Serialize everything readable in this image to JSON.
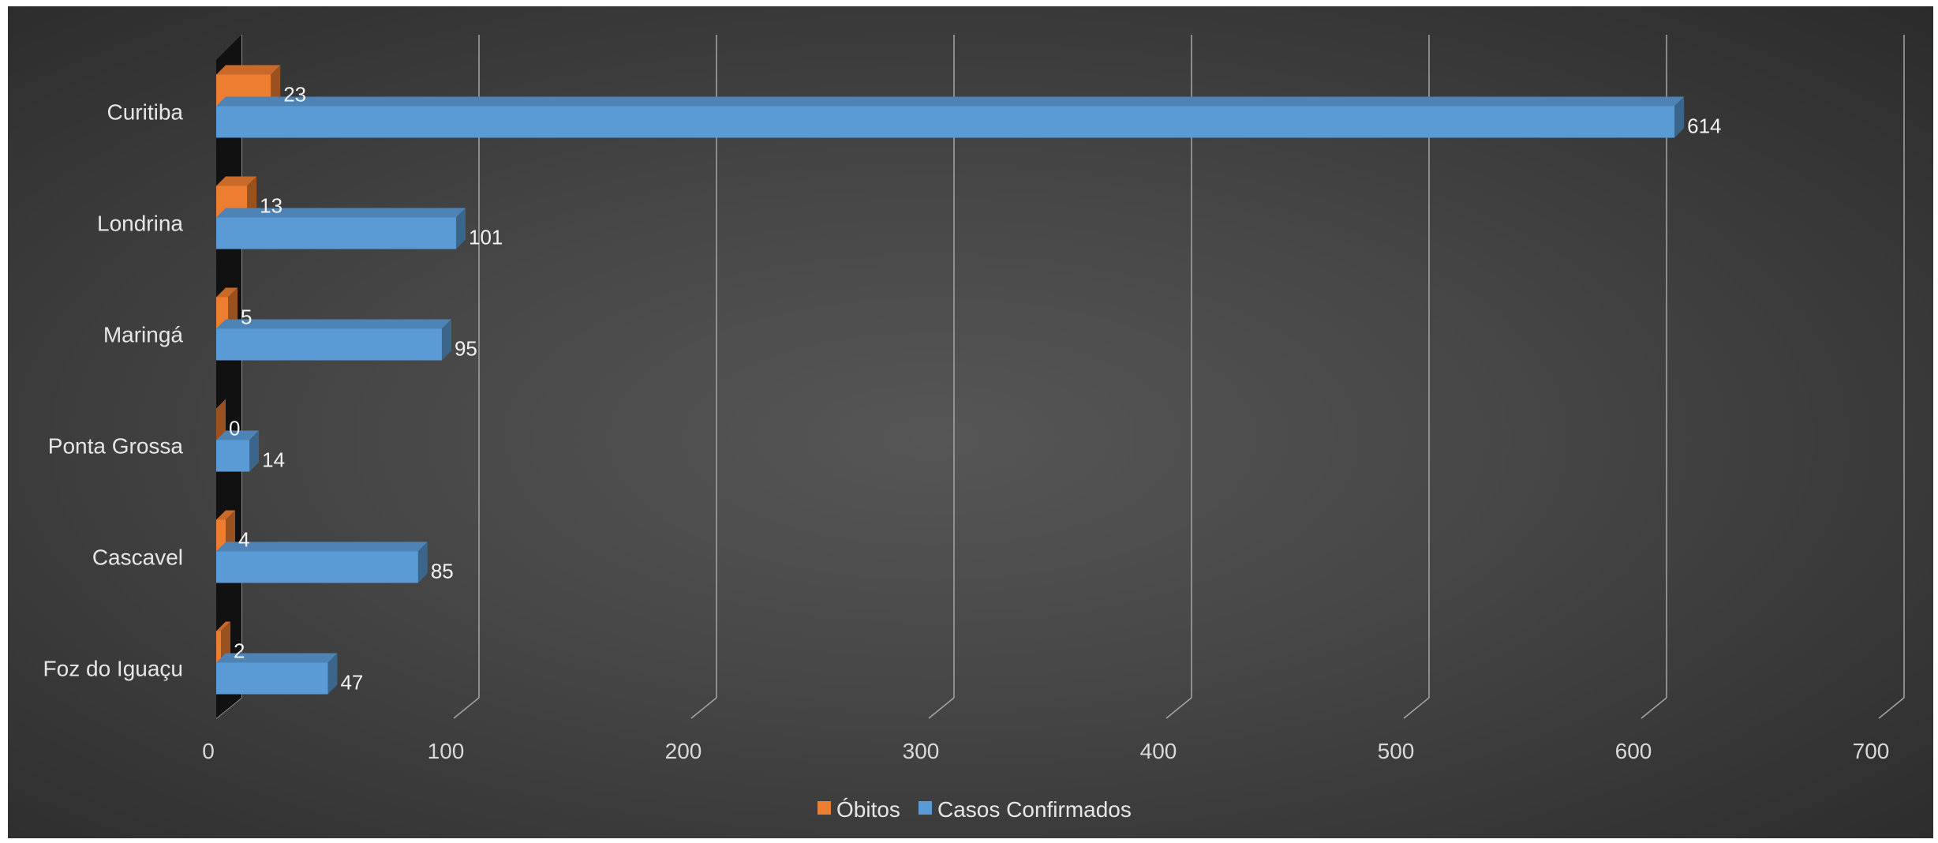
{
  "chart_data": {
    "type": "bar",
    "orientation": "horizontal",
    "style": "3d-clustered",
    "categories": [
      "Curitiba",
      "Londrina",
      "Maringá",
      "Ponta Grossa",
      "Cascavel",
      "Foz do Iguaçu"
    ],
    "series": [
      {
        "name": "Óbitos",
        "values": [
          23,
          13,
          5,
          0,
          4,
          2
        ],
        "color": "#ED7D31"
      },
      {
        "name": "Casos Confirmados",
        "values": [
          614,
          101,
          95,
          14,
          85,
          47
        ],
        "color": "#5B9BD5"
      }
    ],
    "x_ticks": [
      0,
      100,
      200,
      300,
      400,
      500,
      600,
      700
    ],
    "xlim": [
      0,
      700
    ],
    "grid": true,
    "legend_position": "bottom",
    "title": "",
    "xlabel": "",
    "ylabel": ""
  }
}
